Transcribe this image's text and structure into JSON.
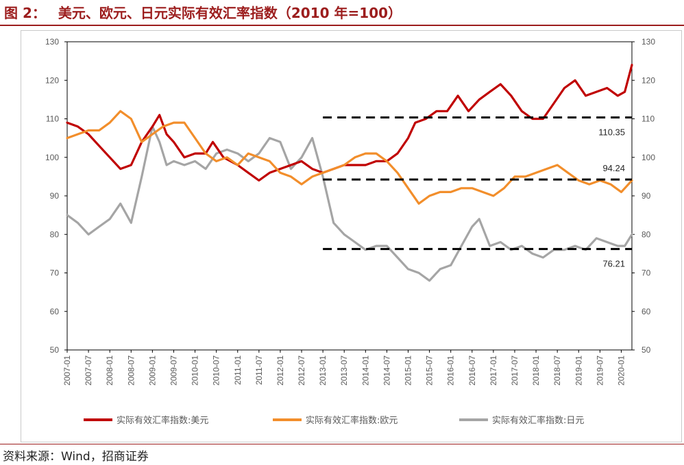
{
  "figure": {
    "label": "图 2：",
    "title": "美元、欧元、日元实际有效汇率指数（2010 年=100）",
    "source": "资料来源：Wind，招商证券"
  },
  "colors": {
    "brand_red": "#9c1d1d",
    "usd": "#c00000",
    "eur": "#f28e2b",
    "jpy": "#a5a5a5",
    "ref_line": "#000000"
  },
  "chart_data": {
    "type": "line",
    "title": "美元、欧元、日元实际有效汇率指数（2010 年=100）",
    "ylim": [
      50,
      130
    ],
    "yticks": [
      50,
      60,
      70,
      80,
      90,
      100,
      110,
      120,
      130
    ],
    "y_axis_both_sides": true,
    "grid": false,
    "legend_position": "bottom",
    "x_tick_labels": [
      "2007-01",
      "2007-07",
      "2008-01",
      "2008-07",
      "2009-01",
      "2009-07",
      "2010-01",
      "2010-07",
      "2011-01",
      "2011-07",
      "2012-01",
      "2012-07",
      "2013-01",
      "2013-07",
      "2014-01",
      "2014-07",
      "2015-01",
      "2015-07",
      "2016-01",
      "2016-07",
      "2017-01",
      "2017-07",
      "2018-01",
      "2018-07",
      "2019-01",
      "2019-07",
      "2020-01"
    ],
    "x_range": [
      "2007-01",
      "2020-04"
    ],
    "series": [
      {
        "name": "实际有效汇率指数:美元",
        "color": "#c00000",
        "points": [
          [
            "2007-01",
            109
          ],
          [
            "2007-04",
            108
          ],
          [
            "2007-07",
            106
          ],
          [
            "2007-10",
            103
          ],
          [
            "2008-01",
            100
          ],
          [
            "2008-04",
            97
          ],
          [
            "2008-07",
            98
          ],
          [
            "2008-10",
            104
          ],
          [
            "2009-01",
            108
          ],
          [
            "2009-03",
            111
          ],
          [
            "2009-05",
            106
          ],
          [
            "2009-07",
            104
          ],
          [
            "2009-10",
            100
          ],
          [
            "2010-01",
            101
          ],
          [
            "2010-04",
            101
          ],
          [
            "2010-06",
            104
          ],
          [
            "2010-09",
            100
          ],
          [
            "2011-01",
            98
          ],
          [
            "2011-04",
            96
          ],
          [
            "2011-07",
            94
          ],
          [
            "2011-10",
            96
          ],
          [
            "2012-01",
            97
          ],
          [
            "2012-04",
            98
          ],
          [
            "2012-07",
            99
          ],
          [
            "2012-10",
            97
          ],
          [
            "2013-01",
            96
          ],
          [
            "2013-04",
            97
          ],
          [
            "2013-07",
            98
          ],
          [
            "2013-10",
            98
          ],
          [
            "2014-01",
            98
          ],
          [
            "2014-04",
            99
          ],
          [
            "2014-07",
            99
          ],
          [
            "2014-10",
            101
          ],
          [
            "2015-01",
            105
          ],
          [
            "2015-03",
            109
          ],
          [
            "2015-06",
            110
          ],
          [
            "2015-09",
            112
          ],
          [
            "2015-12",
            112
          ],
          [
            "2016-03",
            116
          ],
          [
            "2016-06",
            112
          ],
          [
            "2016-09",
            115
          ],
          [
            "2016-12",
            117
          ],
          [
            "2017-03",
            119
          ],
          [
            "2017-06",
            116
          ],
          [
            "2017-09",
            112
          ],
          [
            "2017-12",
            110
          ],
          [
            "2018-03",
            110
          ],
          [
            "2018-06",
            114
          ],
          [
            "2018-09",
            118
          ],
          [
            "2018-12",
            120
          ],
          [
            "2019-03",
            116
          ],
          [
            "2019-06",
            117
          ],
          [
            "2019-09",
            118
          ],
          [
            "2019-12",
            116
          ],
          [
            "2020-02",
            117
          ],
          [
            "2020-04",
            124
          ]
        ]
      },
      {
        "name": "实际有效汇率指数:欧元",
        "color": "#f28e2b",
        "points": [
          [
            "2007-01",
            105
          ],
          [
            "2007-04",
            106
          ],
          [
            "2007-07",
            107
          ],
          [
            "2007-10",
            107
          ],
          [
            "2008-01",
            109
          ],
          [
            "2008-04",
            112
          ],
          [
            "2008-07",
            110
          ],
          [
            "2008-10",
            104
          ],
          [
            "2009-01",
            106
          ],
          [
            "2009-04",
            108
          ],
          [
            "2009-07",
            109
          ],
          [
            "2009-10",
            109
          ],
          [
            "2010-01",
            105
          ],
          [
            "2010-04",
            101
          ],
          [
            "2010-07",
            99
          ],
          [
            "2010-10",
            100
          ],
          [
            "2011-01",
            98
          ],
          [
            "2011-04",
            101
          ],
          [
            "2011-07",
            100
          ],
          [
            "2011-10",
            99
          ],
          [
            "2012-01",
            96
          ],
          [
            "2012-04",
            95
          ],
          [
            "2012-07",
            93
          ],
          [
            "2012-10",
            95
          ],
          [
            "2013-01",
            96
          ],
          [
            "2013-04",
            97
          ],
          [
            "2013-07",
            98
          ],
          [
            "2013-10",
            100
          ],
          [
            "2014-01",
            101
          ],
          [
            "2014-04",
            101
          ],
          [
            "2014-07",
            99
          ],
          [
            "2014-10",
            96
          ],
          [
            "2015-01",
            92
          ],
          [
            "2015-04",
            88
          ],
          [
            "2015-07",
            90
          ],
          [
            "2015-10",
            91
          ],
          [
            "2016-01",
            91
          ],
          [
            "2016-04",
            92
          ],
          [
            "2016-07",
            92
          ],
          [
            "2016-10",
            91
          ],
          [
            "2017-01",
            90
          ],
          [
            "2017-04",
            92
          ],
          [
            "2017-07",
            95
          ],
          [
            "2017-10",
            95
          ],
          [
            "2018-01",
            96
          ],
          [
            "2018-04",
            97
          ],
          [
            "2018-07",
            98
          ],
          [
            "2018-10",
            96
          ],
          [
            "2019-01",
            94
          ],
          [
            "2019-04",
            93
          ],
          [
            "2019-07",
            94
          ],
          [
            "2019-10",
            93
          ],
          [
            "2020-01",
            91
          ],
          [
            "2020-04",
            94
          ]
        ]
      },
      {
        "name": "实际有效汇率指数:日元",
        "color": "#a5a5a5",
        "points": [
          [
            "2007-01",
            85
          ],
          [
            "2007-04",
            83
          ],
          [
            "2007-07",
            80
          ],
          [
            "2007-10",
            82
          ],
          [
            "2008-01",
            84
          ],
          [
            "2008-04",
            88
          ],
          [
            "2008-07",
            83
          ],
          [
            "2008-10",
            95
          ],
          [
            "2009-01",
            108
          ],
          [
            "2009-03",
            104
          ],
          [
            "2009-05",
            98
          ],
          [
            "2009-07",
            99
          ],
          [
            "2009-10",
            98
          ],
          [
            "2010-01",
            99
          ],
          [
            "2010-04",
            97
          ],
          [
            "2010-07",
            101
          ],
          [
            "2010-10",
            102
          ],
          [
            "2011-01",
            101
          ],
          [
            "2011-04",
            99
          ],
          [
            "2011-07",
            101
          ],
          [
            "2011-10",
            105
          ],
          [
            "2012-01",
            104
          ],
          [
            "2012-04",
            97
          ],
          [
            "2012-07",
            100
          ],
          [
            "2012-10",
            105
          ],
          [
            "2013-01",
            95
          ],
          [
            "2013-04",
            83
          ],
          [
            "2013-07",
            80
          ],
          [
            "2013-10",
            78
          ],
          [
            "2014-01",
            76
          ],
          [
            "2014-04",
            77
          ],
          [
            "2014-07",
            77
          ],
          [
            "2014-10",
            74
          ],
          [
            "2015-01",
            71
          ],
          [
            "2015-04",
            70
          ],
          [
            "2015-07",
            68
          ],
          [
            "2015-10",
            71
          ],
          [
            "2016-01",
            72
          ],
          [
            "2016-04",
            77
          ],
          [
            "2016-07",
            82
          ],
          [
            "2016-09",
            84
          ],
          [
            "2016-12",
            77
          ],
          [
            "2017-03",
            78
          ],
          [
            "2017-06",
            76
          ],
          [
            "2017-09",
            77
          ],
          [
            "2017-12",
            75
          ],
          [
            "2018-03",
            74
          ],
          [
            "2018-06",
            76
          ],
          [
            "2018-09",
            76
          ],
          [
            "2018-12",
            77
          ],
          [
            "2019-03",
            76
          ],
          [
            "2019-06",
            79
          ],
          [
            "2019-09",
            78
          ],
          [
            "2019-12",
            77
          ],
          [
            "2020-02",
            77
          ],
          [
            "2020-04",
            80
          ]
        ]
      }
    ],
    "reference_lines": [
      {
        "value": 110.35,
        "label": "110.35",
        "from": "2013-01"
      },
      {
        "value": 94.24,
        "label": "94.24",
        "from": "2013-01"
      },
      {
        "value": 76.21,
        "label": "76.21",
        "from": "2013-01"
      }
    ]
  }
}
